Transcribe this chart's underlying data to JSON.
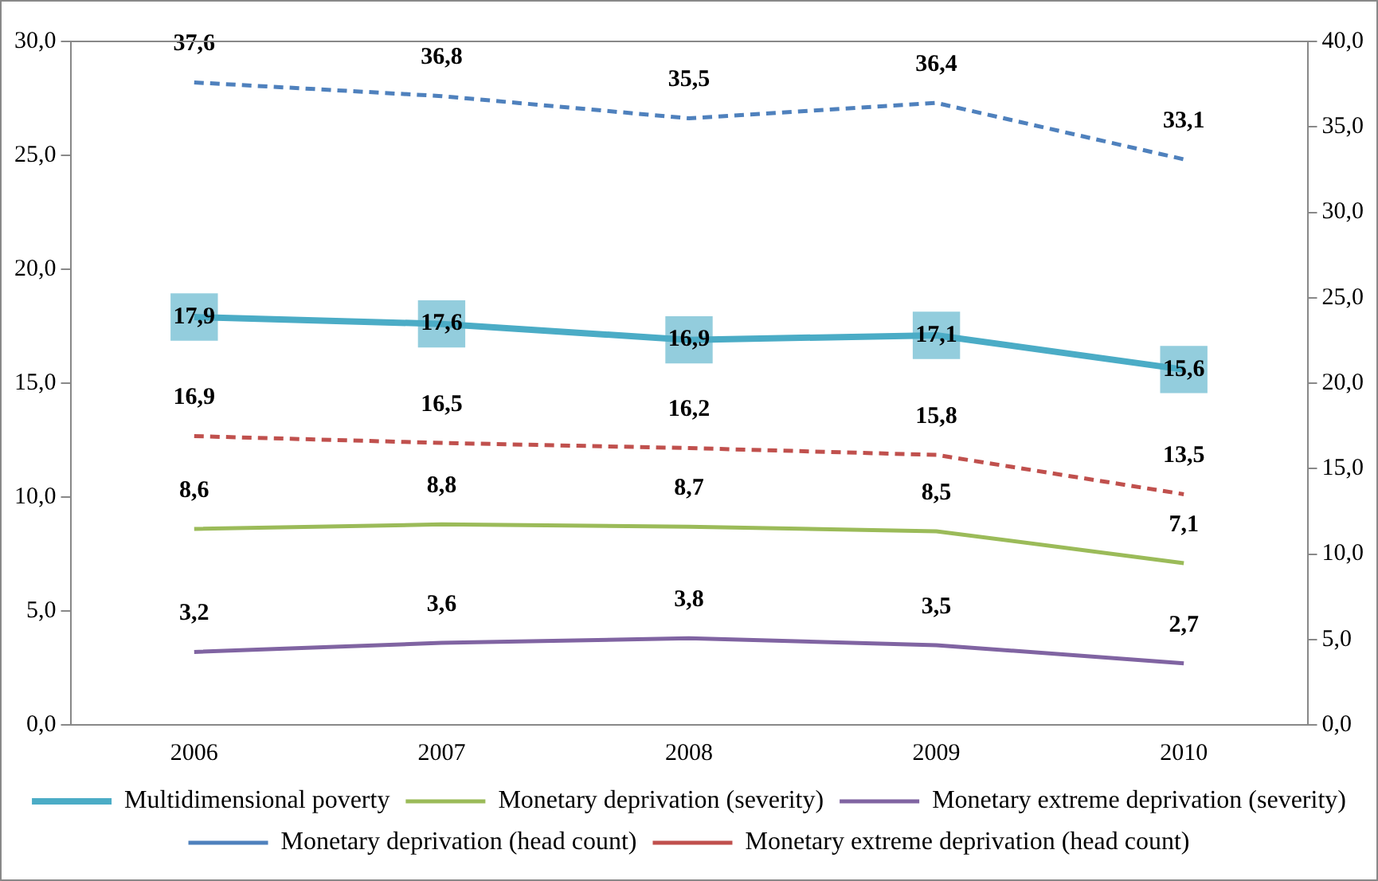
{
  "chart_data": {
    "type": "line",
    "categories": [
      "2006",
      "2007",
      "2008",
      "2009",
      "2010"
    ],
    "series": [
      {
        "name": "Multidimensional poverty",
        "color": "#4bacc6",
        "values": [
          17.9,
          17.6,
          16.9,
          17.1,
          15.6
        ],
        "value_labels": [
          "17,9",
          "17,6",
          "16,9",
          "17,1",
          "15,6"
        ],
        "line_style": "solid",
        "marker": "square"
      },
      {
        "name": "Monetary deprivation (severity)",
        "color": "#9bbb59",
        "values": [
          8.6,
          8.8,
          8.7,
          8.5,
          7.1
        ],
        "value_labels": [
          "8,6",
          "8,8",
          "8,7",
          "8,5",
          "7,1"
        ],
        "line_style": "solid"
      },
      {
        "name": "Monetary extreme deprivation (severity)",
        "color": "#8064a2",
        "values": [
          3.2,
          3.6,
          3.8,
          3.5,
          2.7
        ],
        "value_labels": [
          "3,2",
          "3,6",
          "3,8",
          "3,5",
          "2,7"
        ],
        "line_style": "solid"
      },
      {
        "name": "Monetary deprivation (head count)",
        "color": "#4f81bd",
        "values": [
          37.6,
          36.8,
          35.5,
          36.4,
          33.1
        ],
        "value_labels": [
          "37,6",
          "36,8",
          "35,5",
          "36,4",
          "33,1"
        ],
        "line_style": "dashed",
        "axis": "y2"
      },
      {
        "name": "Monetary extreme deprivation (head count)",
        "color": "#c0504d",
        "values": [
          16.9,
          16.5,
          16.2,
          15.8,
          13.5
        ],
        "value_labels": [
          "16,9",
          "16,5",
          "16,2",
          "15,8",
          "13,5"
        ],
        "line_style": "dashed",
        "axis": "y2"
      }
    ],
    "ylim": [
      0,
      30
    ],
    "yticks": [
      {
        "value": 0,
        "label": "0,0"
      },
      {
        "value": 5,
        "label": "5,0"
      },
      {
        "value": 10,
        "label": "10,0"
      },
      {
        "value": 15,
        "label": "15,0"
      },
      {
        "value": 20,
        "label": "20,0"
      },
      {
        "value": 25,
        "label": "25,0"
      },
      {
        "value": 30,
        "label": "30,0"
      }
    ],
    "y2lim": [
      0,
      40
    ],
    "y2ticks": [
      {
        "value": 0,
        "label": "0,0"
      },
      {
        "value": 5,
        "label": "5,0"
      },
      {
        "value": 10,
        "label": "10,0"
      },
      {
        "value": 15,
        "label": "15,0"
      },
      {
        "value": 20,
        "label": "20,0"
      },
      {
        "value": 25,
        "label": "25,0"
      },
      {
        "value": 30,
        "label": "30,0"
      },
      {
        "value": 35,
        "label": "35,0"
      },
      {
        "value": 40,
        "label": "40,0"
      }
    ],
    "grid": false,
    "legend": "bottom",
    "marker": "none"
  }
}
